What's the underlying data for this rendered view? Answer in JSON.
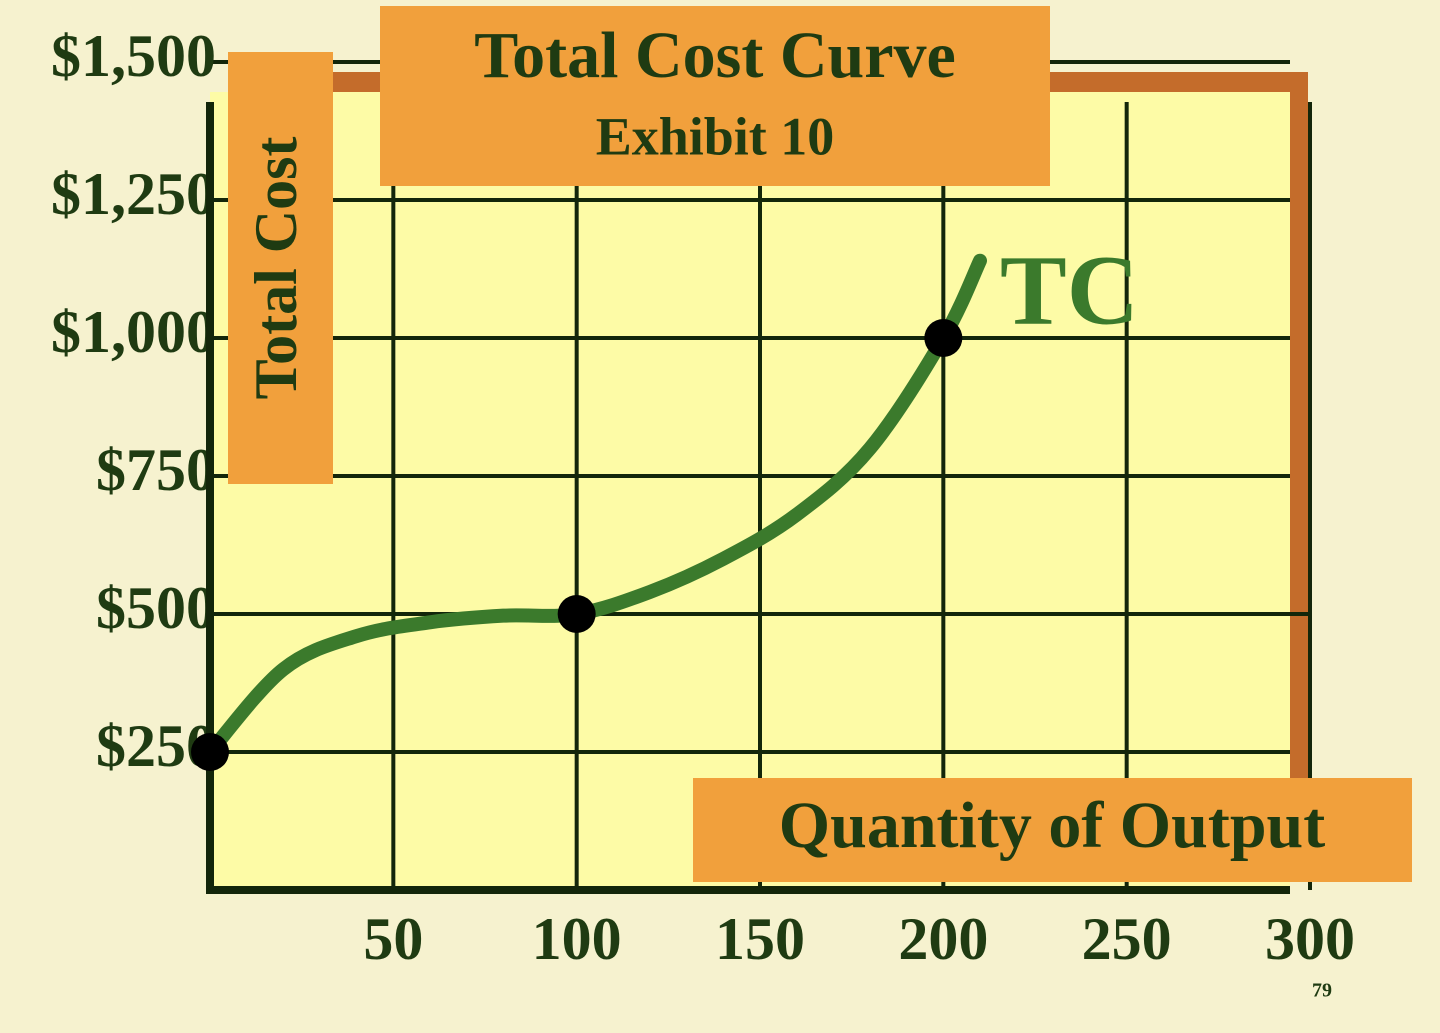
{
  "chart_data": {
    "type": "line",
    "title": "Total Cost Curve",
    "subtitle": "Exhibit 10",
    "y_label": "Total Cost",
    "x_label": "Quantity of Output",
    "series": [
      {
        "name": "TC",
        "color": "#3b7a2c",
        "x": [
          0,
          20,
          40,
          60,
          80,
          100,
          120,
          140,
          160,
          180,
          200,
          210
        ],
        "values": [
          250,
          400,
          460,
          485,
          497,
          500,
          540,
          600,
          680,
          800,
          1000,
          1140
        ]
      }
    ],
    "marked_points": {
      "color": "#000000",
      "x": [
        0,
        100,
        200
      ],
      "values": [
        250,
        500,
        1000
      ]
    },
    "xlim": [
      0,
      300
    ],
    "xticks": [
      50,
      100,
      150,
      200,
      250,
      300
    ],
    "ylim": [
      0,
      1500
    ],
    "yticks": [
      {
        "value": 250,
        "label": "$250"
      },
      {
        "value": 500,
        "label": "$500"
      },
      {
        "value": 750,
        "label": "$750"
      },
      {
        "value": 1000,
        "label": "$1,000"
      },
      {
        "value": 1250,
        "label": "$1,250"
      },
      {
        "value": 1500,
        "label": "$1,500"
      }
    ],
    "grid": true,
    "page_number": "79"
  }
}
